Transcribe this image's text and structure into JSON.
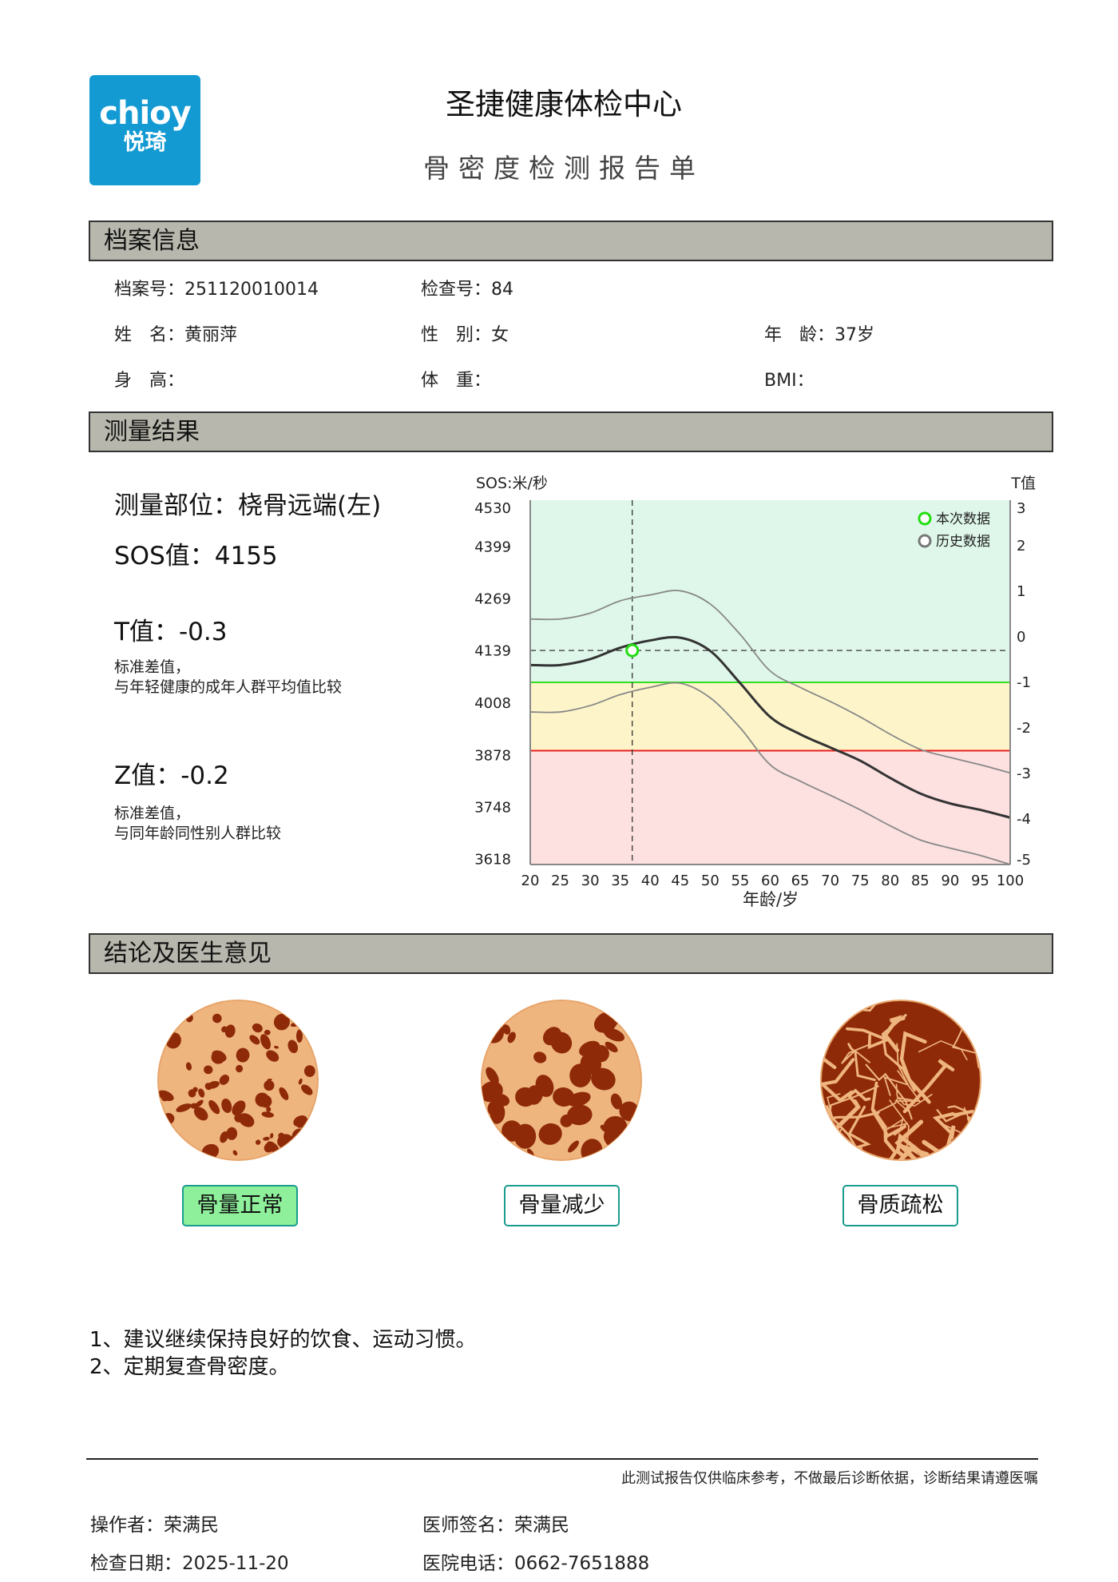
{
  "header": {
    "logo_text_en": "chioy",
    "logo_text_cn": "悦琦",
    "title": "圣捷健康体检中心",
    "subtitle": "骨密度检测报告单"
  },
  "profile": {
    "section_title": "档案信息",
    "file_no_label": "档案号：",
    "file_no": "251120010014",
    "exam_no_label": "检查号：",
    "exam_no": "84",
    "name_label": "姓　名：",
    "name": "黄丽萍",
    "gender_label": "性　别：",
    "gender": "女",
    "age_label": "年　龄：",
    "age": "37岁",
    "height_label": "身　高：",
    "height": "",
    "weight_label": "体　重：",
    "weight": "",
    "bmi_label": "BMI：",
    "bmi": ""
  },
  "results": {
    "section_title": "测量结果",
    "site_label": "测量部位：",
    "site": "桡骨远端(左)",
    "sos_label": "SOS值：",
    "sos": "4155",
    "t_label": "T值：",
    "t": "-0.3",
    "t_note_1": "标准差值，",
    "t_note_2": "与年轻健康的成年人群平均值比较",
    "z_label": "Z值：",
    "z": "-0.2",
    "z_note_1": "标准差值，",
    "z_note_2": "与同年龄同性别人群比较"
  },
  "chart_data": {
    "type": "line",
    "ylabel_left": "SOS:米/秒",
    "ylabel_right": "T值",
    "xlabel": "年龄/岁",
    "x_ticks": [
      20,
      25,
      30,
      35,
      40,
      45,
      50,
      55,
      60,
      65,
      70,
      75,
      80,
      85,
      90,
      95,
      100
    ],
    "xlim": [
      20,
      100
    ],
    "y_left_ticks": [
      4530,
      4399,
      4269,
      4139,
      4008,
      3878,
      3748,
      3618
    ],
    "y_right_ticks": [
      3,
      2,
      1,
      0,
      -1,
      -2,
      -3,
      -4,
      -5
    ],
    "ylim_t": [
      -5,
      3
    ],
    "zones": [
      {
        "from_t": -1,
        "to_t": 3,
        "color": "#dff7ea"
      },
      {
        "from_t": -2.5,
        "to_t": -1,
        "color": "#fdf5c9"
      },
      {
        "from_t": -5,
        "to_t": -2.5,
        "color": "#fde0e0"
      }
    ],
    "threshold_lines": [
      {
        "t": -1,
        "color": "#33dd22"
      },
      {
        "t": -2.5,
        "color": "#e82020"
      }
    ],
    "series": [
      {
        "role": "mean",
        "color": "#333333",
        "values_t": [
          -0.62,
          -0.62,
          -0.49,
          -0.24,
          -0.08,
          -0.02,
          -0.31,
          -1.02,
          -1.76,
          -2.14,
          -2.43,
          -2.72,
          -3.1,
          -3.44,
          -3.66,
          -3.8,
          -3.97
        ]
      },
      {
        "role": "upper",
        "color": "#888888",
        "values_t": [
          0.39,
          0.39,
          0.52,
          0.79,
          0.92,
          1.01,
          0.72,
          0.05,
          -0.75,
          -1.11,
          -1.42,
          -1.76,
          -2.14,
          -2.47,
          -2.65,
          -2.81,
          -2.99
        ]
      },
      {
        "role": "lower",
        "color": "#888888",
        "values_t": [
          -1.65,
          -1.65,
          -1.51,
          -1.27,
          -1.11,
          -1.02,
          -1.34,
          -2.0,
          -2.81,
          -3.17,
          -3.48,
          -3.8,
          -4.15,
          -4.46,
          -4.64,
          -4.8,
          -5.0
        ]
      }
    ],
    "current_point": {
      "age": 37,
      "t": -0.3,
      "color": "#22dd11"
    },
    "legend": [
      {
        "label": "本次数据",
        "color": "#22dd11"
      },
      {
        "label": "历史数据",
        "color": "#777777"
      }
    ],
    "legend_position": "top-right"
  },
  "conclusion": {
    "section_title": "结论及医生意见",
    "categories": [
      {
        "label": "骨量正常",
        "active": true
      },
      {
        "label": "骨量减少",
        "active": false
      },
      {
        "label": "骨质疏松",
        "active": false
      }
    ],
    "advice": [
      "1、建议继续保持良好的饮食、运动习惯。",
      "2、定期复查骨密度。"
    ]
  },
  "footer": {
    "disclaimer": "此测试报告仅供临床参考，不做最后诊断依据，诊断结果请遵医嘱",
    "operator_label": "操作者：",
    "operator": "荣满民",
    "doctor_label": "医师签名：",
    "doctor": "荣满民",
    "date_label": "检查日期：",
    "date": "2025-11-20",
    "phone_label": "医院电话：",
    "phone": "0662-7651888"
  },
  "colors": {
    "logo_bg": "#139ad3",
    "section_bg": "#b7b7ad",
    "tag_border": "#1a9c8e",
    "tag_active": "#8ef09a",
    "bone_light": "#efb57f",
    "bone_dark": "#8e2a08"
  }
}
